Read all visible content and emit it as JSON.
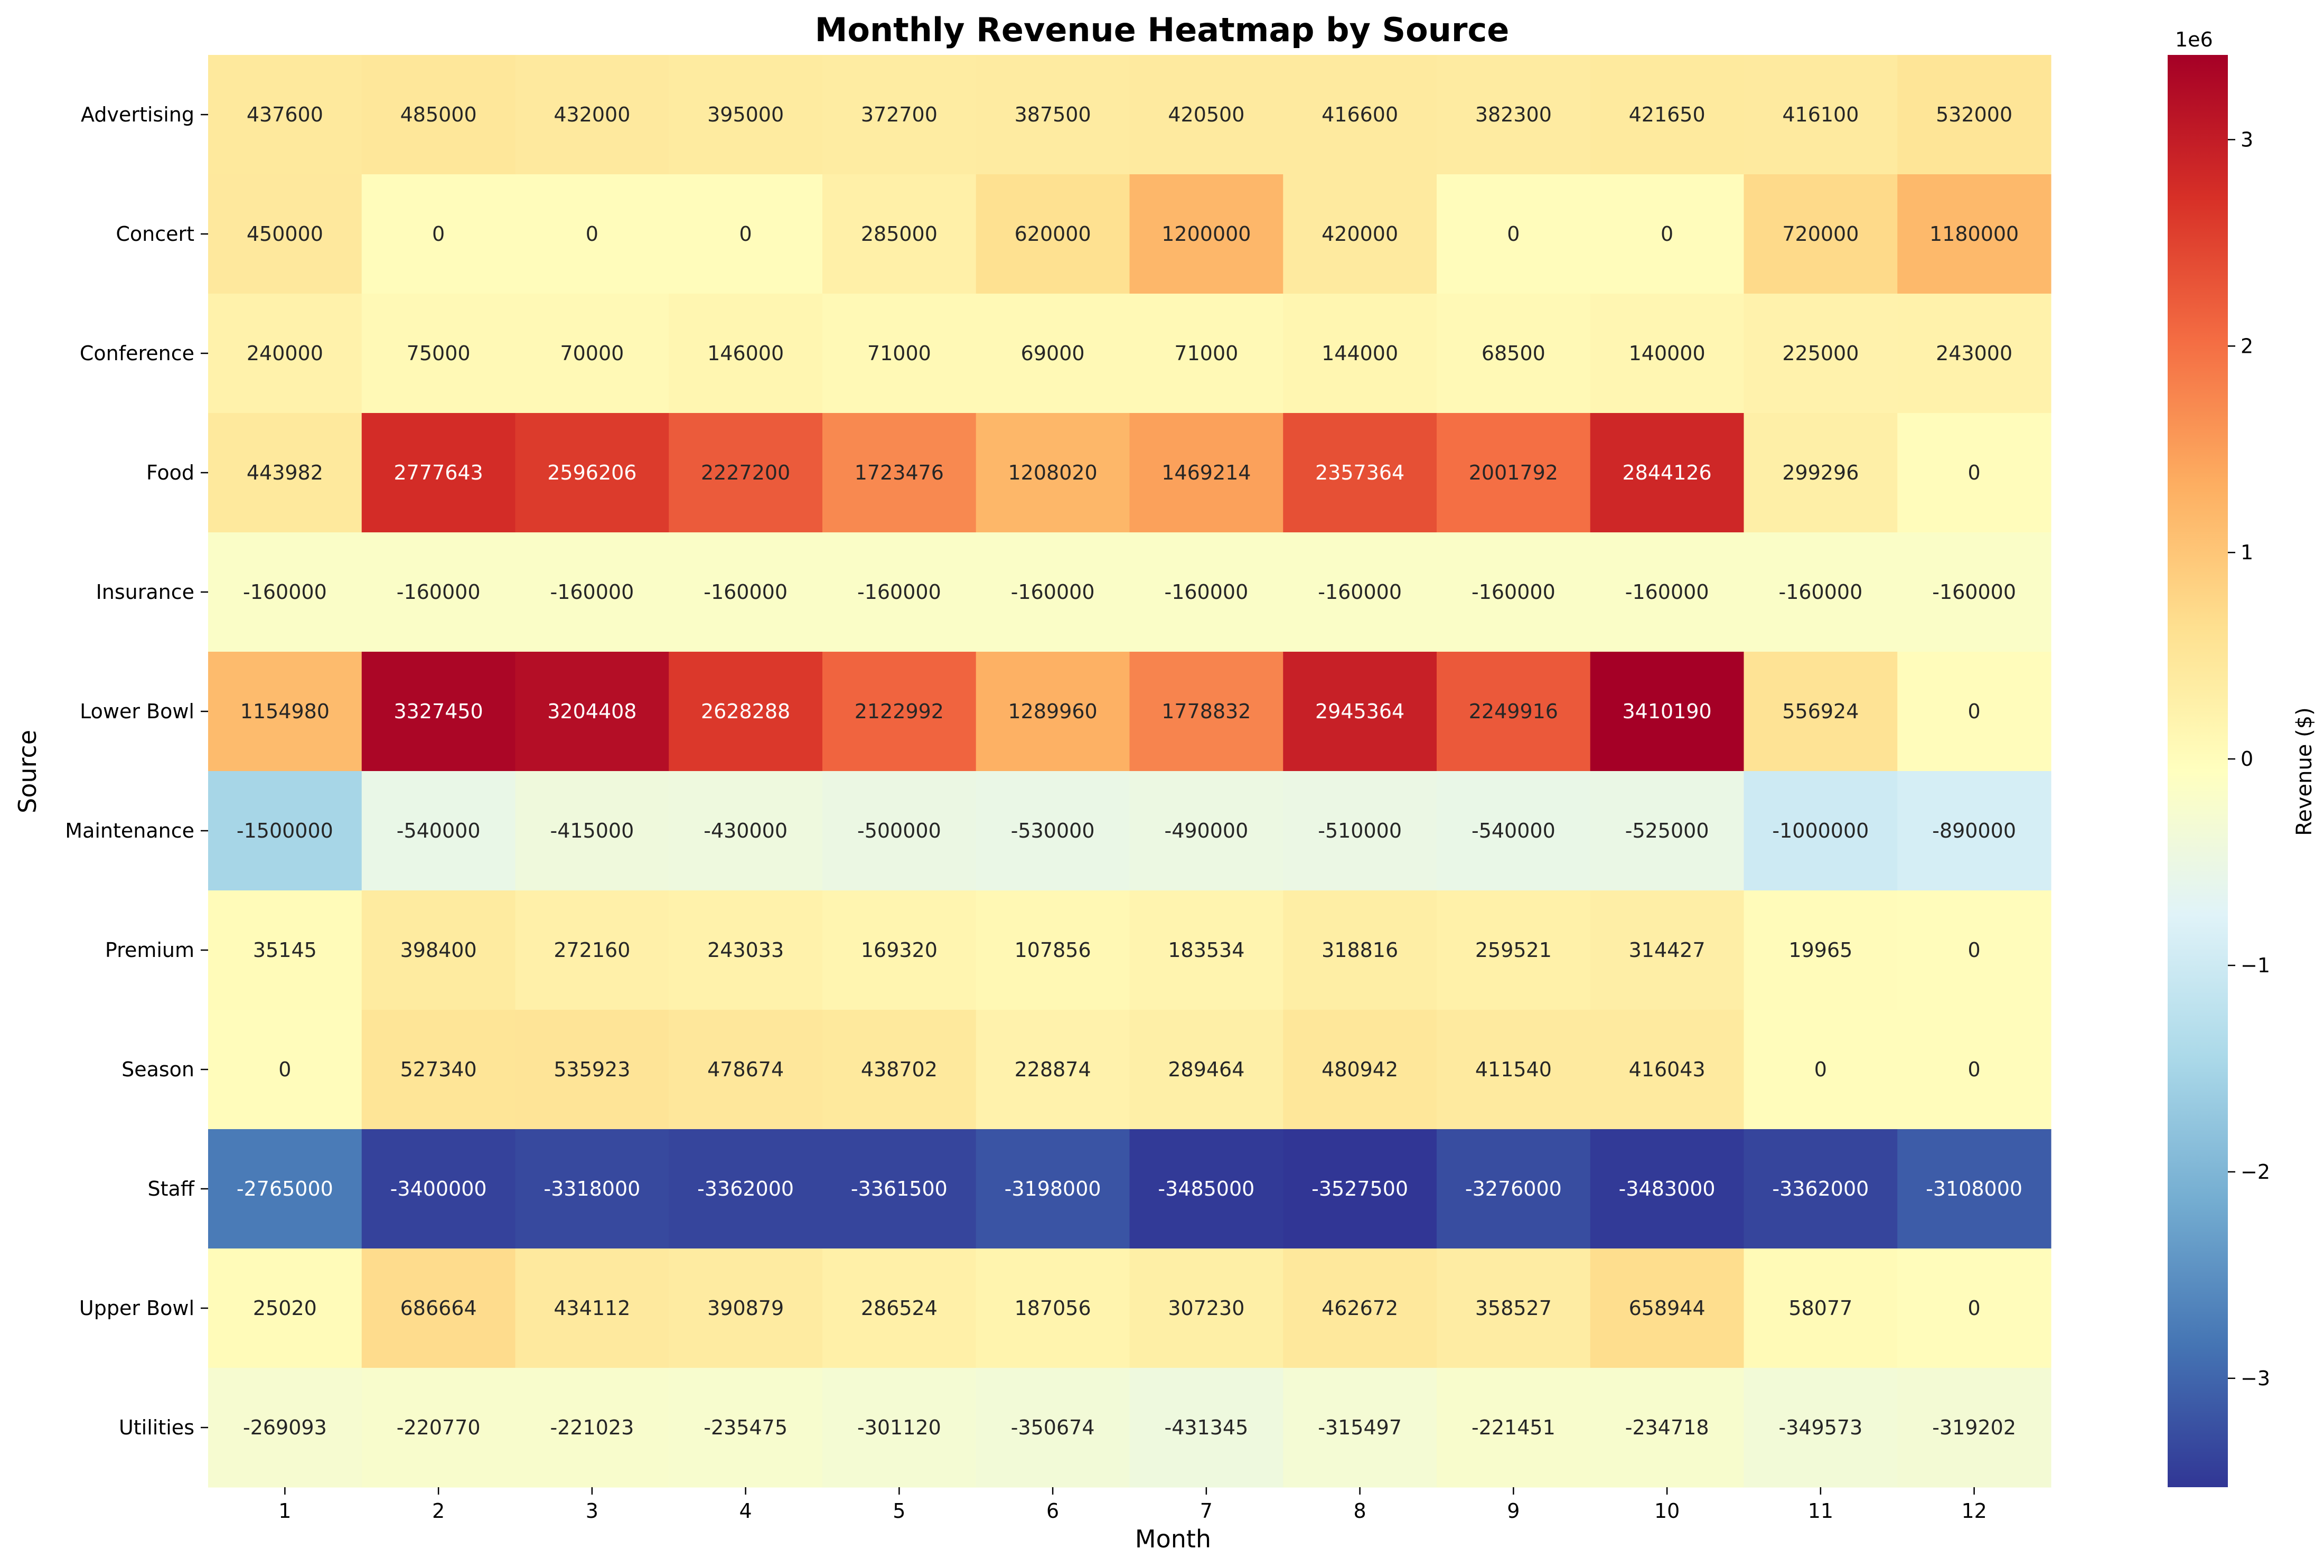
{
  "chart_data": {
    "type": "heatmap",
    "title": "Monthly Revenue Heatmap by Source",
    "xlabel": "Month",
    "ylabel": "Source",
    "x": [
      "1",
      "2",
      "3",
      "4",
      "5",
      "6",
      "7",
      "8",
      "9",
      "10",
      "11",
      "12"
    ],
    "y": [
      "Advertising",
      "Concert",
      "Conference",
      "Food",
      "Insurance",
      "Lower Bowl",
      "Maintenance",
      "Premium",
      "Season",
      "Staff",
      "Upper Bowl",
      "Utilities"
    ],
    "values": [
      [
        437600,
        485000,
        432000,
        395000,
        372700,
        387500,
        420500,
        416600,
        382300,
        421650,
        416100,
        532000
      ],
      [
        450000,
        0,
        0,
        0,
        285000,
        620000,
        1200000,
        420000,
        0,
        0,
        720000,
        1180000
      ],
      [
        240000,
        75000,
        70000,
        146000,
        71000,
        69000,
        71000,
        144000,
        68500,
        140000,
        225000,
        243000
      ],
      [
        443982,
        2777643,
        2596206,
        2227200,
        1723476,
        1208020,
        1469214,
        2357364,
        2001792,
        2844126,
        299296,
        0
      ],
      [
        -160000,
        -160000,
        -160000,
        -160000,
        -160000,
        -160000,
        -160000,
        -160000,
        -160000,
        -160000,
        -160000,
        -160000
      ],
      [
        1154980,
        3327450,
        3204408,
        2628288,
        2122992,
        1289960,
        1778832,
        2945364,
        2249916,
        3410190,
        556924,
        0
      ],
      [
        -1500000,
        -540000,
        -415000,
        -430000,
        -500000,
        -530000,
        -490000,
        -510000,
        -540000,
        -525000,
        -1000000,
        -890000
      ],
      [
        35145,
        398400,
        272160,
        243033,
        169320,
        107856,
        183534,
        318816,
        259521,
        314427,
        19965,
        0
      ],
      [
        0,
        527340,
        535923,
        478674,
        438702,
        228874,
        289464,
        480942,
        411540,
        416043,
        0,
        0
      ],
      [
        -2765000,
        -3400000,
        -3318000,
        -3362000,
        -3361500,
        -3198000,
        -3485000,
        -3527500,
        -3276000,
        -3483000,
        -3362000,
        -3108000
      ],
      [
        25020,
        686664,
        434112,
        390879,
        286524,
        187056,
        307230,
        462672,
        358527,
        658944,
        58077,
        0
      ],
      [
        -269093,
        -220770,
        -221023,
        -235475,
        -301120,
        -350674,
        -431345,
        -315497,
        -221451,
        -234718,
        -349573,
        -319202
      ]
    ],
    "colormap": "RdYlBu_r",
    "vmin": -3527500,
    "vmax": 3410190,
    "colorbar": {
      "label": "Revenue ($)",
      "offset_text": "1e6",
      "ticks": [
        -3,
        -2,
        -1,
        0,
        1,
        2,
        3
      ]
    }
  }
}
